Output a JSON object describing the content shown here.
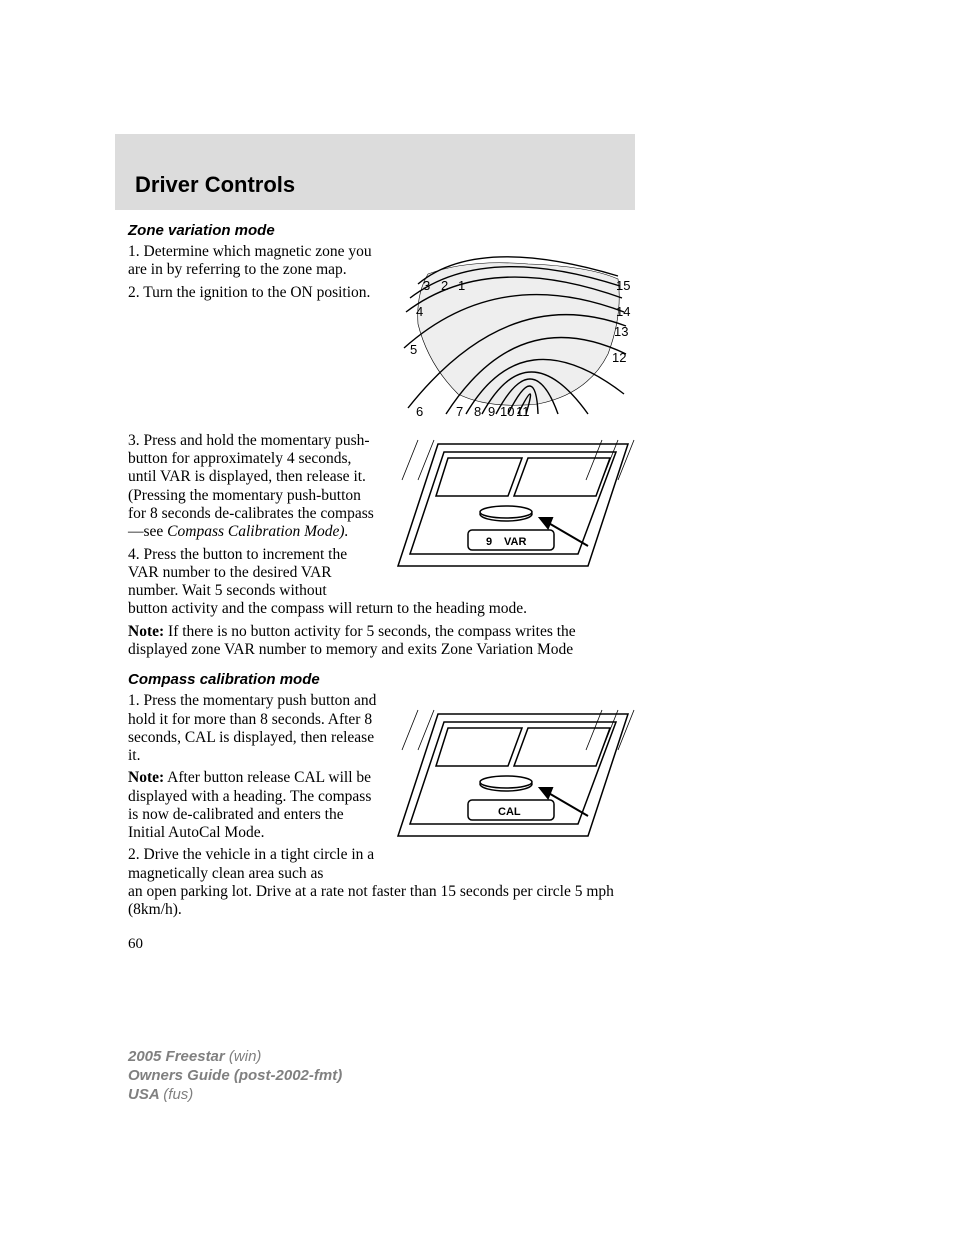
{
  "header": {
    "title": "Driver Controls"
  },
  "section1": {
    "heading": "Zone variation mode",
    "step1": "1. Determine which magnetic zone you are in by referring to the zone map.",
    "step2": "2. Turn the ignition to the ON position.",
    "step3_a": "3. Press and hold the momentary push-button for approximately 4 seconds, until VAR is displayed, then release it. (Pressing the momentary push-button for 8 seconds de-calibrates the compass—see ",
    "step3_b": "Compass Calibration Mode).",
    "step4": "4. Press the button to increment the VAR number to the desired VAR number. Wait 5 seconds without button activity and the compass will return to the heading mode.",
    "note_label": "Note:",
    "note_text": " If there is no button activity for 5 seconds, the compass writes the displayed zone VAR number to memory and exits Zone Variation Mode"
  },
  "section2": {
    "heading": "Compass calibration mode",
    "step1": "1. Press the momentary push button and hold it for more than 8 seconds. After 8 seconds, CAL is displayed, then release it.",
    "note_label": "Note:",
    "note_text": " After button release CAL will be displayed with a heading. The compass is now de-calibrated and enters the Initial AutoCal Mode.",
    "step2": "2. Drive the vehicle in a tight circle in a magnetically clean area such as an open parking lot. Drive at a rate not faster than 15 seconds per circle 5 mph (8km/h)."
  },
  "page_number": "60",
  "footer": {
    "line1a": "2005 Freestar ",
    "line1b": "(win)",
    "line2": "Owners Guide (post-2002-fmt)",
    "line3a": "USA ",
    "line3b": "(fus)"
  },
  "figures": {
    "map": {
      "zone_numbers": [
        "1",
        "2",
        "3",
        "4",
        "5",
        "6",
        "7",
        "8",
        "9",
        "10",
        "11",
        "12",
        "13",
        "14",
        "15"
      ],
      "display_var_label": "VAR",
      "display_var_num": "9",
      "display_cal_label": "CAL"
    }
  },
  "colors": {
    "header_bg": "#dcdcdc",
    "footer_text": "#808080",
    "text": "#000000",
    "page_bg": "#ffffff"
  }
}
